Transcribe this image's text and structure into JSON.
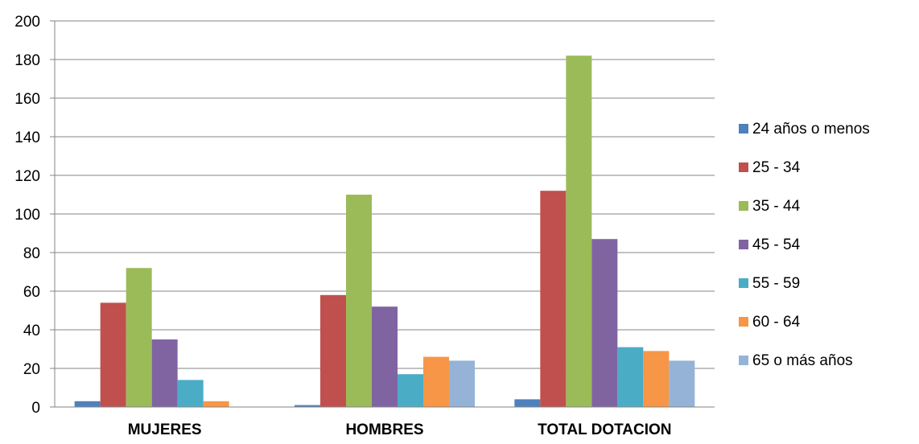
{
  "chart_data": {
    "type": "bar",
    "categories": [
      "MUJERES",
      "HOMBRES",
      "TOTAL DOTACION"
    ],
    "series": [
      {
        "name": "24 años o menos",
        "color": "#4F81BD",
        "values": [
          3,
          1,
          4
        ]
      },
      {
        "name": "25 - 34",
        "color": "#C0504D",
        "values": [
          54,
          58,
          112
        ]
      },
      {
        "name": "35 - 44",
        "color": "#9BBB59",
        "values": [
          72,
          110,
          182
        ]
      },
      {
        "name": "45 - 54",
        "color": "#8064A2",
        "values": [
          35,
          52,
          87
        ]
      },
      {
        "name": "55 - 59",
        "color": "#4BACC6",
        "values": [
          14,
          17,
          31
        ]
      },
      {
        "name": "60 - 64",
        "color": "#F79646",
        "values": [
          3,
          26,
          29
        ]
      },
      {
        "name": "65 o más años",
        "color": "#95B3D7",
        "values": [
          0,
          24,
          24
        ]
      }
    ],
    "yticks": [
      "0",
      "20",
      "40",
      "60",
      "80",
      "100",
      "120",
      "140",
      "160",
      "180",
      "200"
    ],
    "ylim": [
      0,
      200
    ],
    "grid": true,
    "legend_position": "right"
  }
}
